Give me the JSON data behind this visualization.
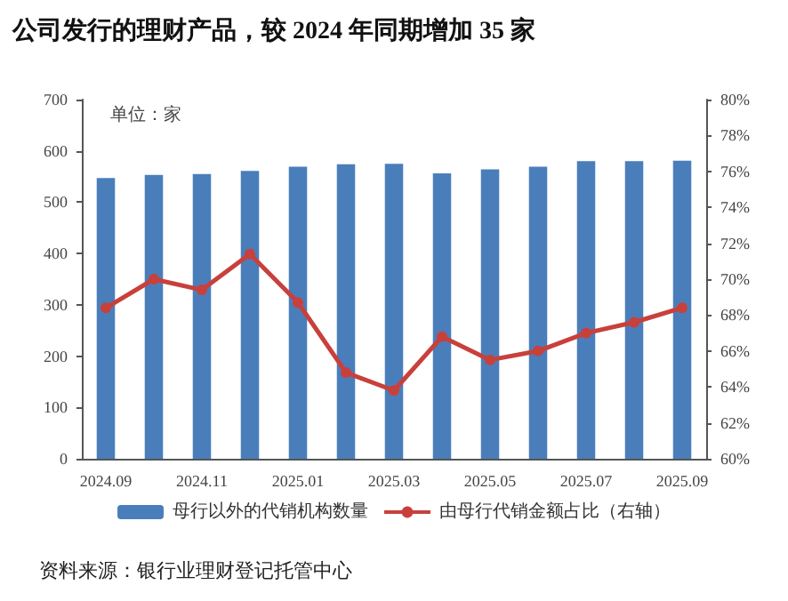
{
  "chart_data": {
    "type": "bar",
    "title": "公司发行的理财产品，较 2024 年同期增加 35 家",
    "categories": [
      "2024.09",
      null,
      "2024.11",
      null,
      "2025.01",
      null,
      "2025.03",
      null,
      "2025.05",
      null,
      "2025.07",
      null,
      "2025.09"
    ],
    "series": [
      {
        "name": "母行以外的代销机构数量",
        "color": "#4a7ebb",
        "values": [
          547,
          553,
          555,
          561,
          569,
          574,
          575,
          556,
          564,
          569,
          580,
          580,
          581
        ]
      },
      {
        "name": "由母行代销金额占比（右轴）",
        "type": "line",
        "axis": "y2",
        "color": "#c8403c",
        "marker": "circle",
        "values": [
          68.4,
          70.0,
          69.4,
          71.4,
          68.7,
          64.8,
          63.8,
          66.8,
          65.5,
          66.0,
          67.0,
          67.6,
          68.4
        ]
      }
    ],
    "ylim": [
      0,
      700
    ],
    "yticks": [
      0,
      100,
      200,
      300,
      400,
      500,
      600,
      700
    ],
    "y2lim": [
      60,
      80
    ],
    "y2ticks": [
      {
        "value": 60,
        "label": "60%"
      },
      {
        "value": 62,
        "label": "62%"
      },
      {
        "value": 64,
        "label": "64%"
      },
      {
        "value": 66,
        "label": "66%"
      },
      {
        "value": 68,
        "label": "68%"
      },
      {
        "value": 70,
        "label": "70%"
      },
      {
        "value": 72,
        "label": "72%"
      },
      {
        "value": 74,
        "label": "74%"
      },
      {
        "value": 76,
        "label": "76%"
      },
      {
        "value": 78,
        "label": "78%"
      },
      {
        "value": 80,
        "label": "80%"
      }
    ],
    "annotations": [
      "单位：家",
      "资料来源：银行业理财登记托管中心"
    ],
    "legend": "bottom",
    "grid": false
  }
}
